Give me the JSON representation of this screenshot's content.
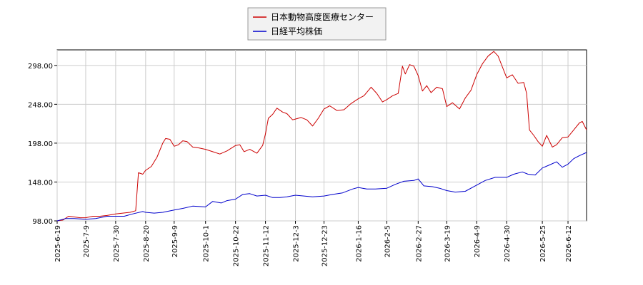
{
  "chart_data": {
    "type": "line",
    "legend": {
      "placement": "top-center"
    },
    "grid": true,
    "ylim": [
      98,
      318
    ],
    "y_ticks": [
      "98.00",
      "148.00",
      "198.00",
      "248.00",
      "298.00"
    ],
    "y_tick_values": [
      98,
      148,
      198,
      248,
      298
    ],
    "x_range": [
      "2025-06-19",
      "2026-06-25"
    ],
    "x_ticks": [
      "2025-6-19",
      "2025-7-9",
      "2025-7-30",
      "2025-8-20",
      "2025-9-9",
      "2025-10-1",
      "2025-10-22",
      "2025-11-12",
      "2025-12-3",
      "2025-12-23",
      "2026-1-16",
      "2026-2-5",
      "2026-2-27",
      "2026-3-19",
      "2026-4-9",
      "2026-4-30",
      "2026-5-25",
      "2026-6-12"
    ],
    "series": [
      {
        "name": "日本動物高度医療センター",
        "color": "#cc0000",
        "points": [
          [
            "2025-06-19",
            98
          ],
          [
            "2025-06-23",
            99
          ],
          [
            "2025-06-27",
            104
          ],
          [
            "2025-07-01",
            103
          ],
          [
            "2025-07-05",
            102
          ],
          [
            "2025-07-09",
            102
          ],
          [
            "2025-07-14",
            104
          ],
          [
            "2025-07-19",
            104
          ],
          [
            "2025-07-24",
            105
          ],
          [
            "2025-07-30",
            107
          ],
          [
            "2025-08-04",
            108
          ],
          [
            "2025-08-09",
            109
          ],
          [
            "2025-08-13",
            111
          ],
          [
            "2025-08-15",
            160
          ],
          [
            "2025-08-18",
            158
          ],
          [
            "2025-08-20",
            163
          ],
          [
            "2025-08-24",
            168
          ],
          [
            "2025-08-28",
            180
          ],
          [
            "2025-09-01",
            198
          ],
          [
            "2025-09-03",
            204
          ],
          [
            "2025-09-06",
            203
          ],
          [
            "2025-09-09",
            194
          ],
          [
            "2025-09-12",
            196
          ],
          [
            "2025-09-15",
            201
          ],
          [
            "2025-09-18",
            200
          ],
          [
            "2025-09-22",
            193
          ],
          [
            "2025-09-26",
            192
          ],
          [
            "2025-10-01",
            190
          ],
          [
            "2025-10-06",
            187
          ],
          [
            "2025-10-11",
            184
          ],
          [
            "2025-10-16",
            188
          ],
          [
            "2025-10-22",
            195
          ],
          [
            "2025-10-25",
            196
          ],
          [
            "2025-10-28",
            187
          ],
          [
            "2025-11-01",
            190
          ],
          [
            "2025-11-06",
            185
          ],
          [
            "2025-11-10",
            195
          ],
          [
            "2025-11-12",
            210
          ],
          [
            "2025-11-14",
            230
          ],
          [
            "2025-11-17",
            235
          ],
          [
            "2025-11-20",
            243
          ],
          [
            "2025-11-24",
            238
          ],
          [
            "2025-11-27",
            236
          ],
          [
            "2025-12-01",
            228
          ],
          [
            "2025-12-03",
            229
          ],
          [
            "2025-12-07",
            231
          ],
          [
            "2025-12-11",
            228
          ],
          [
            "2025-12-15",
            220
          ],
          [
            "2025-12-19",
            230
          ],
          [
            "2025-12-23",
            242
          ],
          [
            "2025-12-27",
            246
          ],
          [
            "2026-01-01",
            240
          ],
          [
            "2026-01-06",
            241
          ],
          [
            "2026-01-11",
            249
          ],
          [
            "2026-01-16",
            255
          ],
          [
            "2026-01-20",
            259
          ],
          [
            "2026-01-25",
            270
          ],
          [
            "2026-01-29",
            262
          ],
          [
            "2026-02-02",
            251
          ],
          [
            "2026-02-05",
            254
          ],
          [
            "2026-02-09",
            259
          ],
          [
            "2026-02-13",
            262
          ],
          [
            "2026-02-16",
            297
          ],
          [
            "2026-02-18",
            287
          ],
          [
            "2026-02-21",
            299
          ],
          [
            "2026-02-24",
            297
          ],
          [
            "2026-02-27",
            285
          ],
          [
            "2026-03-02",
            265
          ],
          [
            "2026-03-05",
            272
          ],
          [
            "2026-03-08",
            263
          ],
          [
            "2026-03-12",
            270
          ],
          [
            "2026-03-16",
            268
          ],
          [
            "2026-03-19",
            245
          ],
          [
            "2026-03-23",
            250
          ],
          [
            "2026-03-28",
            242
          ],
          [
            "2026-04-01",
            256
          ],
          [
            "2026-04-05",
            266
          ],
          [
            "2026-04-09",
            286
          ],
          [
            "2026-04-13",
            300
          ],
          [
            "2026-04-17",
            310
          ],
          [
            "2026-04-21",
            316
          ],
          [
            "2026-04-24",
            310
          ],
          [
            "2026-04-27",
            296
          ],
          [
            "2026-04-30",
            282
          ],
          [
            "2026-05-04",
            286
          ],
          [
            "2026-05-08",
            275
          ],
          [
            "2026-05-12",
            276
          ],
          [
            "2026-05-14",
            262
          ],
          [
            "2026-05-16",
            215
          ],
          [
            "2026-05-19",
            208
          ],
          [
            "2026-05-22",
            200
          ],
          [
            "2026-05-25",
            194
          ],
          [
            "2026-05-28",
            208
          ],
          [
            "2026-06-01",
            193
          ],
          [
            "2026-06-04",
            196
          ],
          [
            "2026-06-08",
            205
          ],
          [
            "2026-06-12",
            206
          ],
          [
            "2026-06-16",
            215
          ],
          [
            "2026-06-20",
            224
          ],
          [
            "2026-06-22",
            226
          ],
          [
            "2026-06-25",
            215
          ]
        ]
      },
      {
        "name": "日経平均株価",
        "color": "#0000cc",
        "points": [
          [
            "2025-06-19",
            98
          ],
          [
            "2025-06-25",
            101
          ],
          [
            "2025-07-01",
            101
          ],
          [
            "2025-07-09",
            100
          ],
          [
            "2025-07-16",
            101
          ],
          [
            "2025-07-24",
            104
          ],
          [
            "2025-07-30",
            104
          ],
          [
            "2025-08-05",
            104
          ],
          [
            "2025-08-11",
            107
          ],
          [
            "2025-08-18",
            110
          ],
          [
            "2025-08-20",
            109
          ],
          [
            "2025-08-26",
            108
          ],
          [
            "2025-09-01",
            109
          ],
          [
            "2025-09-09",
            112
          ],
          [
            "2025-09-15",
            114
          ],
          [
            "2025-09-22",
            117
          ],
          [
            "2025-10-01",
            116
          ],
          [
            "2025-10-06",
            123
          ],
          [
            "2025-10-12",
            121
          ],
          [
            "2025-10-16",
            124
          ],
          [
            "2025-10-22",
            126
          ],
          [
            "2025-10-27",
            132
          ],
          [
            "2025-11-01",
            133
          ],
          [
            "2025-11-06",
            130
          ],
          [
            "2025-11-12",
            131
          ],
          [
            "2025-11-17",
            128
          ],
          [
            "2025-11-22",
            128
          ],
          [
            "2025-11-27",
            129
          ],
          [
            "2025-12-03",
            131
          ],
          [
            "2025-12-09",
            130
          ],
          [
            "2025-12-15",
            129
          ],
          [
            "2025-12-23",
            130
          ],
          [
            "2025-12-29",
            132
          ],
          [
            "2026-01-05",
            134
          ],
          [
            "2026-01-12",
            139
          ],
          [
            "2026-01-16",
            141
          ],
          [
            "2026-01-22",
            139
          ],
          [
            "2026-01-28",
            139
          ],
          [
            "2026-02-05",
            140
          ],
          [
            "2026-02-11",
            145
          ],
          [
            "2026-02-17",
            149
          ],
          [
            "2026-02-24",
            150
          ],
          [
            "2026-02-27",
            152
          ],
          [
            "2026-03-03",
            143
          ],
          [
            "2026-03-09",
            142
          ],
          [
            "2026-03-14",
            140
          ],
          [
            "2026-03-19",
            137
          ],
          [
            "2026-03-25",
            135
          ],
          [
            "2026-04-01",
            136
          ],
          [
            "2026-04-09",
            144
          ],
          [
            "2026-04-15",
            150
          ],
          [
            "2026-04-22",
            154
          ],
          [
            "2026-04-30",
            154
          ],
          [
            "2026-05-05",
            158
          ],
          [
            "2026-05-11",
            161
          ],
          [
            "2026-05-15",
            158
          ],
          [
            "2026-05-20",
            157
          ],
          [
            "2026-05-25",
            166
          ],
          [
            "2026-05-30",
            170
          ],
          [
            "2026-06-04",
            174
          ],
          [
            "2026-06-08",
            167
          ],
          [
            "2026-06-12",
            171
          ],
          [
            "2026-06-16",
            178
          ],
          [
            "2026-06-20",
            182
          ],
          [
            "2026-06-25",
            186
          ]
        ]
      }
    ]
  }
}
